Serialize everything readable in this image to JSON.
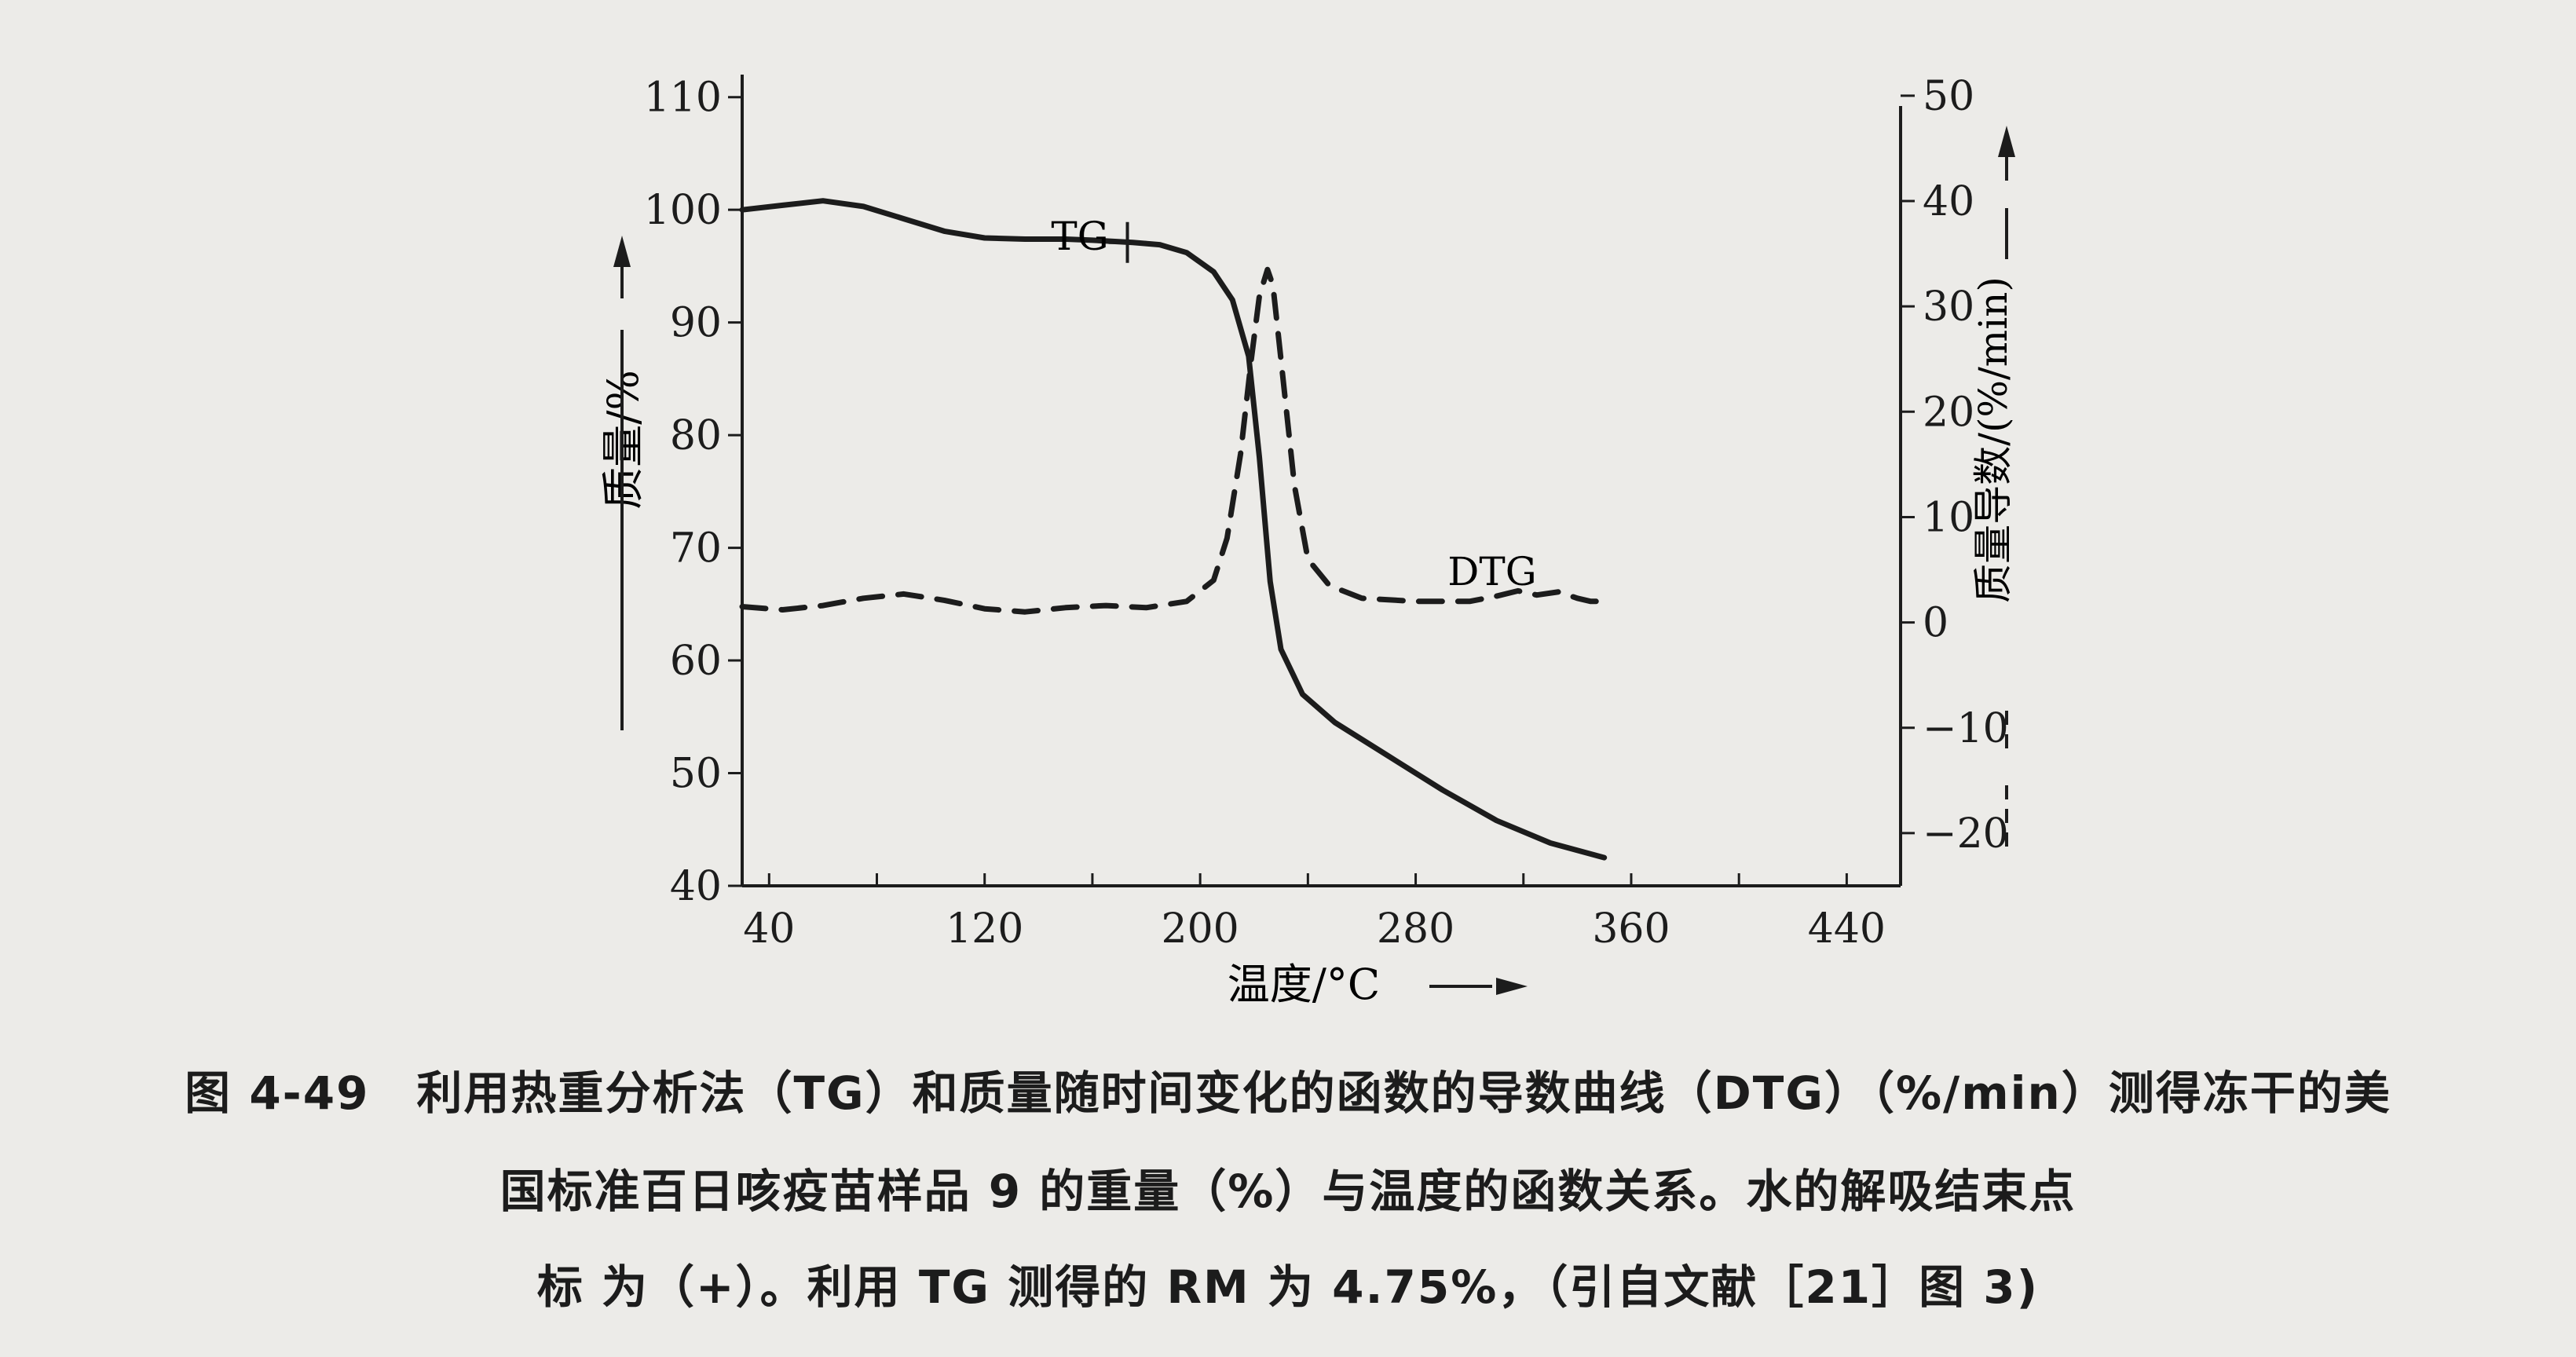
{
  "chart_data": {
    "type": "line",
    "xlabel": "温度/°C",
    "ylabel_left": "质量/%",
    "ylabel_right": "质量导数/(%/min)",
    "xlim": [
      30,
      460
    ],
    "ylim_left": [
      40,
      112
    ],
    "ylim_right": [
      -25,
      52
    ],
    "x_ticks": [
      40,
      120,
      200,
      280,
      360,
      440
    ],
    "y_left_ticks": [
      40,
      50,
      60,
      70,
      80,
      90,
      100,
      110
    ],
    "y_right_ticks": [
      -20,
      -10,
      0,
      10,
      20,
      30,
      40,
      50
    ],
    "y_right_tick_labels": [
      "−20",
      "−10",
      "0",
      "10",
      "20",
      "30",
      "40",
      "50"
    ],
    "series": [
      {
        "name": "TG",
        "axis": "left",
        "style": "solid",
        "x": [
          30,
          45,
          60,
          75,
          90,
          105,
          120,
          135,
          150,
          160,
          175,
          185,
          195,
          205,
          212,
          218,
          222,
          226,
          230,
          238,
          250,
          270,
          290,
          310,
          330,
          350
        ],
        "y": [
          100,
          100.4,
          100.8,
          100.3,
          99.2,
          98.1,
          97.5,
          97.4,
          97.4,
          97.3,
          97.1,
          96.9,
          96.2,
          94.5,
          92,
          87,
          78,
          67,
          61,
          57,
          54.5,
          51.5,
          48.5,
          45.8,
          43.8,
          42.5
        ]
      },
      {
        "name": "DTG",
        "axis": "right",
        "style": "dashed",
        "x": [
          30,
          45,
          60,
          75,
          90,
          105,
          120,
          135,
          150,
          165,
          180,
          195,
          205,
          210,
          215,
          219,
          222,
          225,
          227,
          230,
          235,
          240,
          248,
          260,
          280,
          300,
          310,
          318,
          325,
          333,
          340,
          345,
          350
        ],
        "y": [
          1.5,
          1.2,
          1.6,
          2.3,
          2.7,
          2.1,
          1.3,
          1.0,
          1.4,
          1.6,
          1.4,
          2.0,
          4,
          8,
          16,
          25,
          31,
          33.5,
          32,
          25,
          13,
          6,
          3.5,
          2.3,
          2.0,
          2.0,
          2.5,
          3.0,
          2.6,
          2.9,
          2.3,
          2.0,
          2.0
        ]
      }
    ],
    "annotations": [
      {
        "text": "TG"
      },
      {
        "text": "DTG"
      },
      {
        "text": "+",
        "x": 173,
        "y": 97.1,
        "meaning": "水的解吸结束点"
      }
    ]
  },
  "caption": {
    "line1": "图 4-49　利用热重分析法（TG）和质量随时间变化的函数的导数曲线（DTG）（%/min）测得冻干的美",
    "line2": "国标准百日咳疫苗样品 9 的重量（%）与温度的函数关系。水的解吸结束点",
    "line3": "标 为（+）。利用 TG 测得的 RM 为 4.75%，（引自文献［21］图 3)"
  }
}
